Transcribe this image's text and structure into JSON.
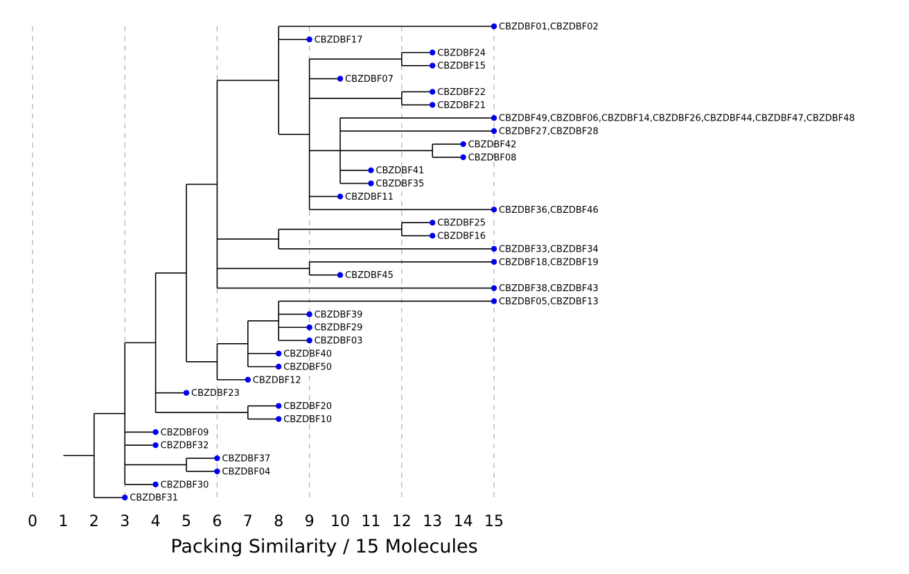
{
  "chart_data": {
    "type": "dendrogram",
    "xlabel": "Packing Similarity / 15 Molecules",
    "xlim": [
      0,
      15
    ],
    "x_ticks": [
      "0",
      "1",
      "2",
      "3",
      "4",
      "5",
      "6",
      "7",
      "8",
      "9",
      "10",
      "11",
      "12",
      "13",
      "14",
      "15"
    ],
    "dashed_gridlines_at": [
      0,
      3,
      6,
      9,
      12,
      15
    ],
    "colors": {
      "leaf_point": "#0000ee",
      "branch": "#000000",
      "gridline": "#aaaaaa"
    },
    "root": {
      "x": 1,
      "children": [
        {
          "x": 2,
          "children": [
            {
              "x": 3,
              "children": [
                {
                  "x": 4,
                  "children": [
                    {
                      "x": 5,
                      "children": [
                        {
                          "x": 6,
                          "children": [
                            {
                              "x": 8,
                              "children": [
                                {
                                  "label": "CBZDBF01,CBZDBF02",
                                  "x": 15
                                },
                                {
                                  "label": "CBZDBF17",
                                  "x": 9
                                },
                                {
                                  "x": 9,
                                  "children": [
                                    {
                                      "x": 12,
                                      "children": [
                                        {
                                          "label": "CBZDBF24",
                                          "x": 13
                                        },
                                        {
                                          "label": "CBZDBF15",
                                          "x": 13
                                        }
                                      ]
                                    },
                                    {
                                      "label": "CBZDBF07",
                                      "x": 10
                                    },
                                    {
                                      "x": 12,
                                      "children": [
                                        {
                                          "label": "CBZDBF22",
                                          "x": 13
                                        },
                                        {
                                          "label": "CBZDBF21",
                                          "x": 13
                                        }
                                      ]
                                    },
                                    {
                                      "x": 10,
                                      "children": [
                                        {
                                          "label": "CBZDBF49,CBZDBF06,CBZDBF14,CBZDBF26,CBZDBF44,CBZDBF47,CBZDBF48",
                                          "x": 15
                                        },
                                        {
                                          "label": "CBZDBF27,CBZDBF28",
                                          "x": 15
                                        },
                                        {
                                          "x": 13,
                                          "children": [
                                            {
                                              "label": "CBZDBF42",
                                              "x": 14
                                            },
                                            {
                                              "label": "CBZDBF08",
                                              "x": 14
                                            }
                                          ]
                                        },
                                        {
                                          "label": "CBZDBF41",
                                          "x": 11
                                        },
                                        {
                                          "label": "CBZDBF35",
                                          "x": 11
                                        }
                                      ]
                                    },
                                    {
                                      "label": "CBZDBF11",
                                      "x": 10
                                    },
                                    {
                                      "label": "CBZDBF36,CBZDBF46",
                                      "x": 15
                                    }
                                  ]
                                }
                              ]
                            },
                            {
                              "x": 8,
                              "children": [
                                {
                                  "x": 12,
                                  "children": [
                                    {
                                      "label": "CBZDBF25",
                                      "x": 13
                                    },
                                    {
                                      "label": "CBZDBF16",
                                      "x": 13
                                    }
                                  ]
                                },
                                {
                                  "label": "CBZDBF33,CBZDBF34",
                                  "x": 15
                                }
                              ]
                            },
                            {
                              "x": 9,
                              "children": [
                                {
                                  "label": "CBZDBF18,CBZDBF19",
                                  "x": 15
                                },
                                {
                                  "label": "CBZDBF45",
                                  "x": 10
                                }
                              ]
                            },
                            {
                              "label": "CBZDBF38,CBZDBF43",
                              "x": 15
                            }
                          ]
                        },
                        {
                          "x": 6,
                          "children": [
                            {
                              "x": 7,
                              "children": [
                                {
                                  "x": 8,
                                  "children": [
                                    {
                                      "label": "CBZDBF05,CBZDBF13",
                                      "x": 15
                                    },
                                    {
                                      "label": "CBZDBF39",
                                      "x": 9
                                    },
                                    {
                                      "label": "CBZDBF29",
                                      "x": 9
                                    },
                                    {
                                      "label": "CBZDBF03",
                                      "x": 9
                                    }
                                  ]
                                },
                                {
                                  "label": "CBZDBF40",
                                  "x": 8
                                },
                                {
                                  "label": "CBZDBF50",
                                  "x": 8
                                }
                              ]
                            },
                            {
                              "label": "CBZDBF12",
                              "x": 7
                            }
                          ]
                        }
                      ]
                    },
                    {
                      "label": "CBZDBF23",
                      "x": 5
                    },
                    {
                      "x": 7,
                      "children": [
                        {
                          "label": "CBZDBF20",
                          "x": 8
                        },
                        {
                          "label": "CBZDBF10",
                          "x": 8
                        }
                      ]
                    }
                  ]
                },
                {
                  "label": "CBZDBF09",
                  "x": 4
                },
                {
                  "label": "CBZDBF32",
                  "x": 4
                },
                {
                  "x": 5,
                  "children": [
                    {
                      "label": "CBZDBF37",
                      "x": 6
                    },
                    {
                      "label": "CBZDBF04",
                      "x": 6
                    }
                  ]
                },
                {
                  "label": "CBZDBF30",
                  "x": 4
                }
              ]
            },
            {
              "label": "CBZDBF31",
              "x": 3
            }
          ]
        }
      ]
    }
  }
}
